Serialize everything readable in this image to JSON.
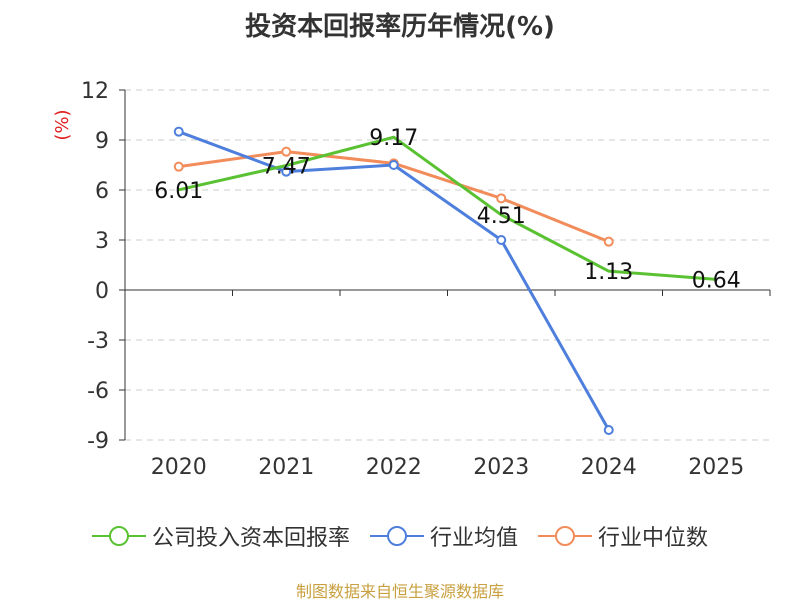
{
  "chart_data": {
    "type": "line",
    "title": "投资本回报率历年情况(%)",
    "ylabel": "(%)",
    "xlabel": "",
    "categories": [
      "2020",
      "2021",
      "2022",
      "2023",
      "2024",
      "2025"
    ],
    "ylim": [
      -9,
      12
    ],
    "yticks": [
      12,
      9,
      6,
      3,
      0,
      -3,
      -6,
      -9
    ],
    "ytick_labels": [
      "12",
      "9",
      "6",
      "3",
      "0",
      "-3",
      "-6",
      "-9"
    ],
    "grid": true,
    "legend_position": "bottom",
    "series": [
      {
        "name": "公司投入资本回报率",
        "color": "#5ac232",
        "values": [
          6.01,
          7.47,
          9.17,
          4.51,
          1.13,
          0.64
        ],
        "labels": [
          "6.01",
          "7.47",
          "9.17",
          "4.51",
          "1.13",
          "0.64"
        ]
      },
      {
        "name": "行业均值",
        "color": "#4e7fdd",
        "values": [
          9.5,
          7.1,
          7.5,
          3.0,
          -8.4,
          null
        ]
      },
      {
        "name": "行业中位数",
        "color": "#f28c5a",
        "values": [
          7.4,
          8.3,
          7.6,
          5.5,
          2.9,
          null
        ]
      }
    ]
  },
  "source": {
    "text": "制图数据来自恒生聚源数据库",
    "color": "#c8a040"
  },
  "colors": {
    "ylabel": "#e02020",
    "axis": "#333333",
    "grid": "#cccccc"
  }
}
